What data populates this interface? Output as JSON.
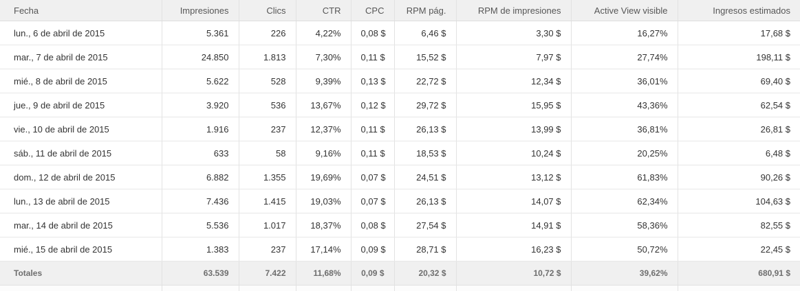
{
  "table": {
    "columns": [
      {
        "key": "fecha",
        "label": "Fecha"
      },
      {
        "key": "impresiones",
        "label": "Impresiones"
      },
      {
        "key": "clics",
        "label": "Clics"
      },
      {
        "key": "ctr",
        "label": "CTR"
      },
      {
        "key": "cpc",
        "label": "CPC"
      },
      {
        "key": "rpm_pag",
        "label": "RPM pág."
      },
      {
        "key": "rpm_impresiones",
        "label": "RPM de impresiones"
      },
      {
        "key": "active_view",
        "label": "Active View visible"
      },
      {
        "key": "ingresos",
        "label": "Ingresos estimados"
      }
    ],
    "rows": [
      [
        "lun., 6 de abril de 2015",
        "5.361",
        "226",
        "4,22%",
        "0,08 $",
        "6,46 $",
        "3,30 $",
        "16,27%",
        "17,68 $"
      ],
      [
        "mar., 7 de abril de 2015",
        "24.850",
        "1.813",
        "7,30%",
        "0,11 $",
        "15,52 $",
        "7,97 $",
        "27,74%",
        "198,11 $"
      ],
      [
        "mié., 8 de abril de 2015",
        "5.622",
        "528",
        "9,39%",
        "0,13 $",
        "22,72 $",
        "12,34 $",
        "36,01%",
        "69,40 $"
      ],
      [
        "jue., 9 de abril de 2015",
        "3.920",
        "536",
        "13,67%",
        "0,12 $",
        "29,72 $",
        "15,95 $",
        "43,36%",
        "62,54 $"
      ],
      [
        "vie., 10 de abril de 2015",
        "1.916",
        "237",
        "12,37%",
        "0,11 $",
        "26,13 $",
        "13,99 $",
        "36,81%",
        "26,81 $"
      ],
      [
        "sáb., 11 de abril de 2015",
        "633",
        "58",
        "9,16%",
        "0,11 $",
        "18,53 $",
        "10,24 $",
        "20,25%",
        "6,48 $"
      ],
      [
        "dom., 12 de abril de 2015",
        "6.882",
        "1.355",
        "19,69%",
        "0,07 $",
        "24,51 $",
        "13,12 $",
        "61,83%",
        "90,26 $"
      ],
      [
        "lun., 13 de abril de 2015",
        "7.436",
        "1.415",
        "19,03%",
        "0,07 $",
        "26,13 $",
        "14,07 $",
        "62,34%",
        "104,63 $"
      ],
      [
        "mar., 14 de abril de 2015",
        "5.536",
        "1.017",
        "18,37%",
        "0,08 $",
        "27,54 $",
        "14,91 $",
        "58,36%",
        "82,55 $"
      ],
      [
        "mié., 15 de abril de 2015",
        "1.383",
        "237",
        "17,14%",
        "0,09 $",
        "28,71 $",
        "16,23 $",
        "50,72%",
        "22,45 $"
      ]
    ],
    "totals": [
      "Totales",
      "63.539",
      "7.422",
      "11,68%",
      "0,09 $",
      "20,32 $",
      "10,72 $",
      "39,62%",
      "680,91 $"
    ]
  },
  "colors": {
    "header_bg": "#f0f0f0",
    "header_text": "#565656",
    "row_bg": "#ffffff",
    "body_text": "#333333",
    "totals_bg": "#f0f0f0",
    "totals_text": "#6e6e6e",
    "border": "#e2e2e2"
  }
}
